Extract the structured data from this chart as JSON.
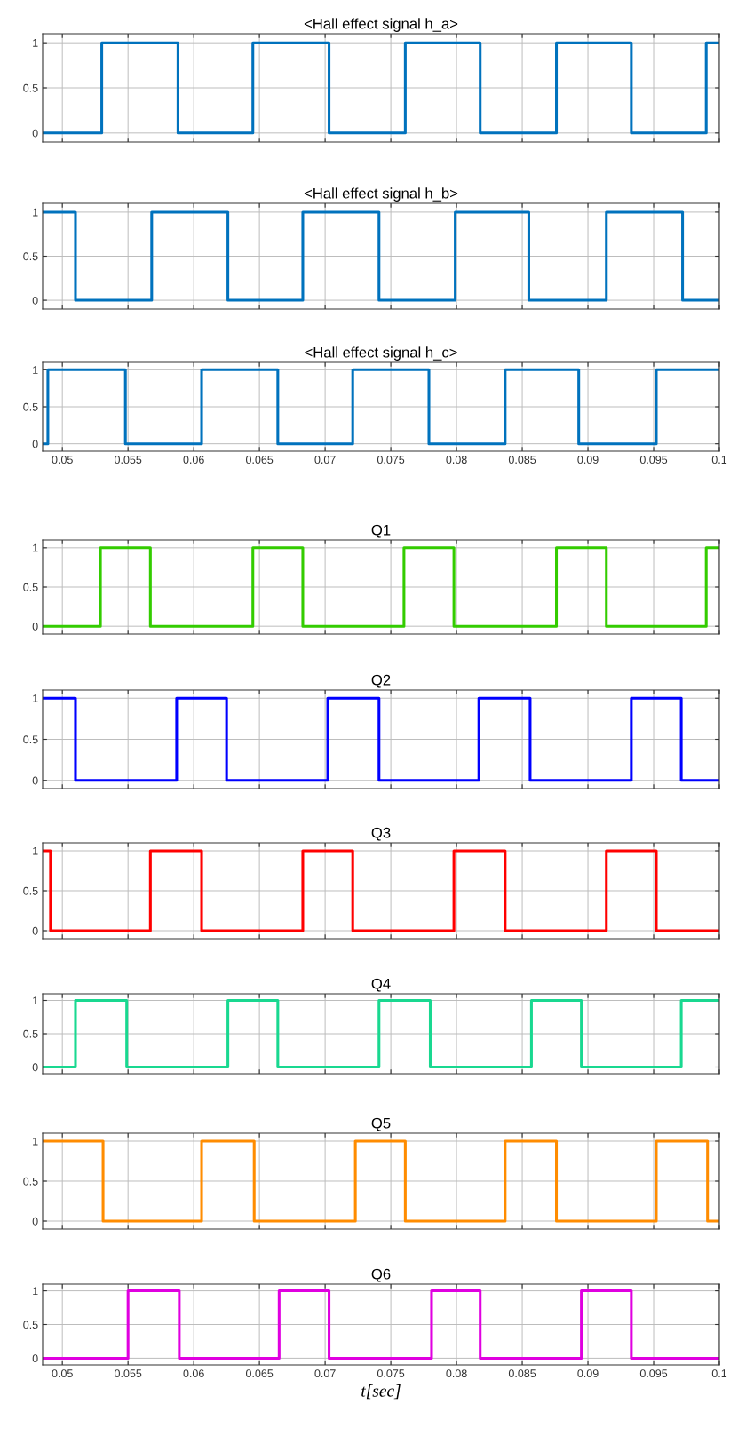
{
  "chart_data": [
    {
      "type": "step",
      "title": "<Hall effect signal h_a>",
      "x": [
        0.0485,
        0.053,
        0.0588,
        0.0645,
        0.0703,
        0.0761,
        0.0818,
        0.0876,
        0.0933,
        0.099,
        0.1
      ],
      "series": [
        {
          "color": "#0072bd",
          "values": [
            0,
            1,
            0,
            1,
            0,
            1,
            0,
            1,
            0,
            1,
            1
          ]
        }
      ],
      "xlim": [
        0.0485,
        0.1
      ],
      "ylim": [
        -0.1,
        1.1
      ],
      "xticks": [
        0.05,
        0.055,
        0.06,
        0.065,
        0.07,
        0.075,
        0.08,
        0.085,
        0.09,
        0.095,
        0.1
      ],
      "yticks": [
        0,
        0.5,
        1
      ],
      "grid": true,
      "tick_labels": "y"
    },
    {
      "type": "step",
      "title": "<Hall effect signal h_b>",
      "x": [
        0.0485,
        0.051,
        0.0568,
        0.0626,
        0.0683,
        0.0741,
        0.0799,
        0.0855,
        0.0914,
        0.0972,
        0.1
      ],
      "series": [
        {
          "color": "#0072bd",
          "values": [
            1,
            0,
            1,
            0,
            1,
            0,
            1,
            0,
            1,
            0,
            0
          ]
        }
      ],
      "xlim": [
        0.0485,
        0.1
      ],
      "ylim": [
        -0.1,
        1.1
      ],
      "xticks": [
        0.05,
        0.055,
        0.06,
        0.065,
        0.07,
        0.075,
        0.08,
        0.085,
        0.09,
        0.095,
        0.1
      ],
      "yticks": [
        0,
        0.5,
        1
      ],
      "grid": true,
      "tick_labels": "y"
    },
    {
      "type": "step",
      "title": "<Hall effect signal h_c>",
      "x": [
        0.0485,
        0.0489,
        0.0548,
        0.0606,
        0.0664,
        0.0721,
        0.0779,
        0.0837,
        0.0893,
        0.0952,
        0.1
      ],
      "series": [
        {
          "color": "#0072bd",
          "values": [
            0,
            1,
            0,
            1,
            0,
            1,
            0,
            1,
            0,
            1,
            1
          ]
        }
      ],
      "xlim": [
        0.0485,
        0.1
      ],
      "ylim": [
        -0.1,
        1.1
      ],
      "xticks": [
        0.05,
        0.055,
        0.06,
        0.065,
        0.07,
        0.075,
        0.08,
        0.085,
        0.09,
        0.095,
        0.1
      ],
      "yticks": [
        0,
        0.5,
        1
      ],
      "grid": true
    },
    {
      "type": "step",
      "title": "Q1",
      "x": [
        0.0485,
        0.0529,
        0.0567,
        0.0645,
        0.0683,
        0.076,
        0.0798,
        0.0876,
        0.0914,
        0.099,
        0.1
      ],
      "series": [
        {
          "color": "#33cc00",
          "values": [
            0,
            1,
            0,
            1,
            0,
            1,
            0,
            1,
            0,
            1,
            1
          ]
        }
      ],
      "xlim": [
        0.0485,
        0.1
      ],
      "ylim": [
        -0.1,
        1.1
      ],
      "xticks": [
        0.05,
        0.055,
        0.06,
        0.065,
        0.07,
        0.075,
        0.08,
        0.085,
        0.09,
        0.095,
        0.1
      ],
      "yticks": [
        0,
        0.5,
        1
      ],
      "grid": true,
      "tick_labels": "y"
    },
    {
      "type": "step",
      "title": "Q2",
      "x": [
        0.0485,
        0.051,
        0.0587,
        0.0625,
        0.0702,
        0.0741,
        0.0817,
        0.0856,
        0.0933,
        0.0971,
        0.1
      ],
      "series": [
        {
          "color": "#0000ff",
          "values": [
            1,
            0,
            1,
            0,
            1,
            0,
            1,
            0,
            1,
            0,
            0
          ]
        }
      ],
      "xlim": [
        0.0485,
        0.1
      ],
      "ylim": [
        -0.1,
        1.1
      ],
      "xticks": [
        0.05,
        0.055,
        0.06,
        0.065,
        0.07,
        0.075,
        0.08,
        0.085,
        0.09,
        0.095,
        0.1
      ],
      "yticks": [
        0,
        0.5,
        1
      ],
      "grid": true,
      "tick_labels": "y"
    },
    {
      "type": "step",
      "title": "Q3",
      "x": [
        0.0485,
        0.0491,
        0.0567,
        0.0606,
        0.0683,
        0.0721,
        0.0798,
        0.0837,
        0.0914,
        0.0952,
        0.1
      ],
      "series": [
        {
          "color": "#ff0000",
          "values": [
            1,
            0,
            1,
            0,
            1,
            0,
            1,
            0,
            1,
            0,
            0
          ]
        }
      ],
      "xlim": [
        0.0485,
        0.1
      ],
      "ylim": [
        -0.1,
        1.1
      ],
      "xticks": [
        0.05,
        0.055,
        0.06,
        0.065,
        0.07,
        0.075,
        0.08,
        0.085,
        0.09,
        0.095,
        0.1
      ],
      "yticks": [
        0,
        0.5,
        1
      ],
      "grid": true,
      "tick_labels": "y"
    },
    {
      "type": "step",
      "title": "Q4",
      "x": [
        0.0485,
        0.051,
        0.0549,
        0.0626,
        0.0664,
        0.0741,
        0.078,
        0.0857,
        0.0895,
        0.0971,
        0.1
      ],
      "series": [
        {
          "color": "#19d890",
          "values": [
            0,
            1,
            0,
            1,
            0,
            1,
            0,
            1,
            0,
            1,
            1
          ]
        }
      ],
      "xlim": [
        0.0485,
        0.1
      ],
      "ylim": [
        -0.1,
        1.1
      ],
      "xticks": [
        0.05,
        0.055,
        0.06,
        0.065,
        0.07,
        0.075,
        0.08,
        0.085,
        0.09,
        0.095,
        0.1
      ],
      "yticks": [
        0,
        0.5,
        1
      ],
      "grid": true,
      "tick_labels": "y"
    },
    {
      "type": "step",
      "title": "Q5",
      "x": [
        0.0485,
        0.0531,
        0.0606,
        0.0646,
        0.0723,
        0.0761,
        0.0837,
        0.0876,
        0.0952,
        0.0991,
        0.1
      ],
      "series": [
        {
          "color": "#ff8c00",
          "values": [
            1,
            0,
            1,
            0,
            1,
            0,
            1,
            0,
            1,
            0,
            0
          ]
        }
      ],
      "xlim": [
        0.0485,
        0.1
      ],
      "ylim": [
        -0.1,
        1.1
      ],
      "xticks": [
        0.05,
        0.055,
        0.06,
        0.065,
        0.07,
        0.075,
        0.08,
        0.085,
        0.09,
        0.095,
        0.1
      ],
      "yticks": [
        0,
        0.5,
        1
      ],
      "grid": true,
      "tick_labels": "y"
    },
    {
      "type": "step",
      "title": "Q6",
      "xlabel": "t[sec]",
      "x": [
        0.0485,
        0.055,
        0.0589,
        0.0665,
        0.0703,
        0.0781,
        0.0818,
        0.0895,
        0.0933,
        0.1
      ],
      "series": [
        {
          "color": "#e000e0",
          "values": [
            0,
            1,
            0,
            1,
            0,
            1,
            0,
            1,
            0,
            0
          ]
        }
      ],
      "xlim": [
        0.0485,
        0.1
      ],
      "ylim": [
        -0.1,
        1.1
      ],
      "xticks": [
        0.05,
        0.055,
        0.06,
        0.065,
        0.07,
        0.075,
        0.08,
        0.085,
        0.09,
        0.095,
        0.1
      ],
      "yticks": [
        0,
        0.5,
        1
      ],
      "grid": true
    }
  ]
}
